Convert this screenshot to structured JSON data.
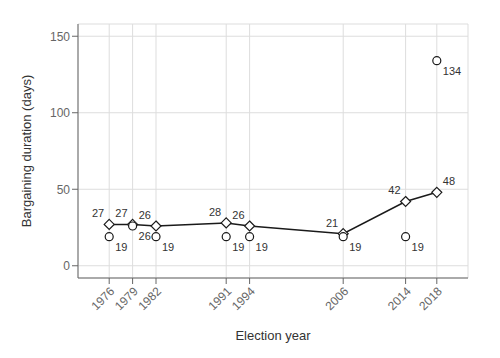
{
  "chart_data": {
    "type": "line",
    "x": [
      1976,
      1979,
      1982,
      1991,
      1994,
      2006,
      2014,
      2018
    ],
    "xlabel": "Election year",
    "ylabel": "Bargaining duration (days)",
    "xlim": [
      1972,
      2022
    ],
    "xticks": [
      1976,
      1979,
      1982,
      1991,
      1994,
      2006,
      2014,
      2018
    ],
    "ylim": [
      -8,
      158
    ],
    "yticks": [
      0,
      50,
      100,
      150
    ],
    "grid": true,
    "data_labels": true,
    "series": [
      {
        "type": "line",
        "marker": "diamond",
        "color": "#1a1a1a",
        "values": [
          27,
          27,
          26,
          28,
          26,
          21,
          42,
          48
        ]
      },
      {
        "type": "scatter",
        "marker": "circle",
        "color": "#1a1a1a",
        "values": [
          19,
          26,
          19,
          19,
          19,
          19,
          19,
          134
        ]
      }
    ]
  }
}
